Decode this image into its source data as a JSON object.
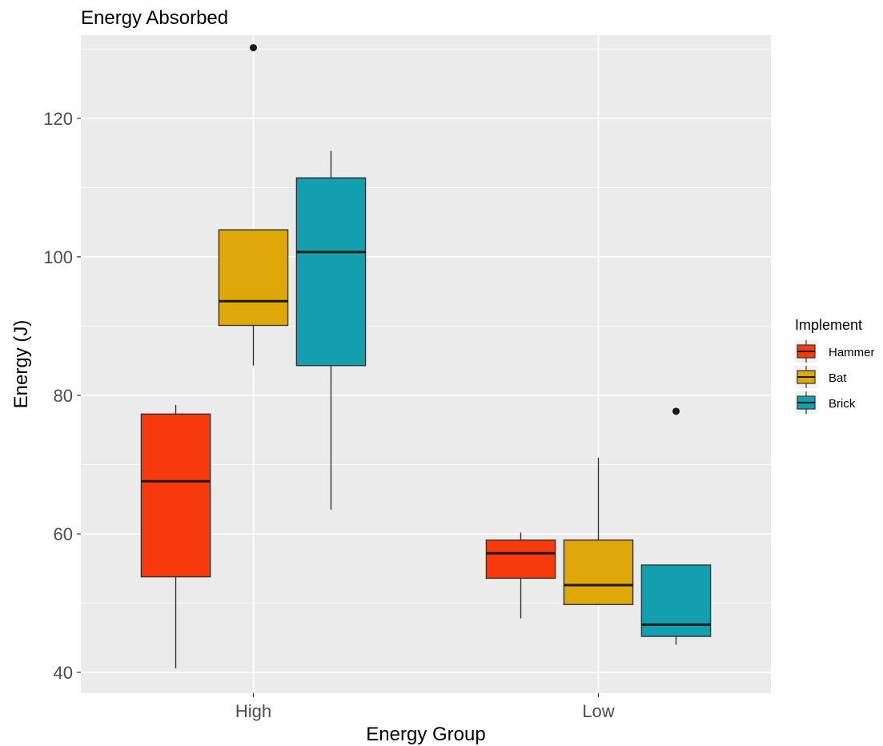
{
  "chart_data": {
    "type": "boxplot",
    "title": "Energy Absorbed",
    "xlabel": "Energy Group",
    "ylabel": "Energy (J)",
    "categories": [
      "High",
      "Low"
    ],
    "ylim": [
      37,
      132
    ],
    "yticks": [
      40,
      60,
      80,
      100,
      120
    ],
    "grid": true,
    "legend": {
      "title": "Implement",
      "position": "right"
    },
    "series": [
      {
        "name": "Hammer",
        "color": "#F8390C",
        "boxes": [
          {
            "category": "High",
            "min": 40.6,
            "q1": 53.8,
            "median": 67.6,
            "q3": 77.3,
            "max": 78.6,
            "outliers": []
          },
          {
            "category": "Low",
            "min": 47.8,
            "q1": 53.6,
            "median": 57.2,
            "q3": 59.1,
            "max": 60.2,
            "outliers": []
          }
        ]
      },
      {
        "name": "Bat",
        "color": "#DFA708",
        "boxes": [
          {
            "category": "High",
            "min": 84.3,
            "q1": 90.1,
            "median": 93.6,
            "q3": 103.9,
            "max": 103.9,
            "outliers": [
              130.2
            ]
          },
          {
            "category": "Low",
            "min": 49.8,
            "q1": 49.8,
            "median": 52.6,
            "q3": 59.1,
            "max": 71.0,
            "outliers": []
          }
        ]
      },
      {
        "name": "Brick",
        "color": "#139FAE",
        "boxes": [
          {
            "category": "High",
            "min": 63.5,
            "q1": 84.3,
            "median": 100.7,
            "q3": 111.4,
            "max": 115.3,
            "outliers": []
          },
          {
            "category": "Low",
            "min": 44.0,
            "q1": 45.2,
            "median": 46.9,
            "q3": 55.5,
            "max": 55.5,
            "outliers": [
              77.7
            ]
          }
        ]
      }
    ]
  }
}
